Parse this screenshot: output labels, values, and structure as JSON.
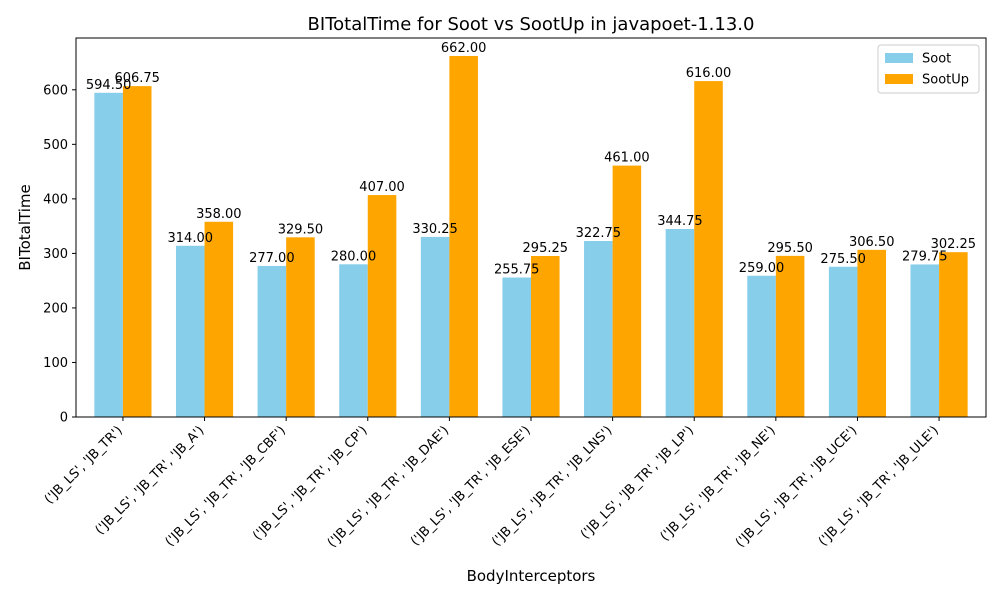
{
  "chart_data": {
    "type": "bar",
    "title": "BITotalTime for Soot vs SootUp in javapoet-1.13.0",
    "xlabel": "BodyInterceptors",
    "ylabel": "BITotalTime",
    "ylim": [
      0,
      695
    ],
    "yticks": [
      0,
      100,
      200,
      300,
      400,
      500,
      600
    ],
    "grid": false,
    "legend_position": "top-right",
    "categories": [
      "('JB_LS', 'JB_TR')",
      "('JB_LS', 'JB_TR', 'JB_A')",
      "('JB_LS', 'JB_TR', 'JB_CBF')",
      "('JB_LS', 'JB_TR', 'JB_CP')",
      "('JB_LS', 'JB_TR', 'JB_DAE')",
      "('JB_LS', 'JB_TR', 'JB_ESE')",
      "('JB_LS', 'JB_TR', 'JB_LNS')",
      "('JB_LS', 'JB_TR', 'JB_LP')",
      "('JB_LS', 'JB_TR', 'JB_NE')",
      "('JB_LS', 'JB_TR', 'JB_UCE')",
      "('JB_LS', 'JB_TR', 'JB_ULE')"
    ],
    "series": [
      {
        "name": "Soot",
        "color": "#87ceeb",
        "values": [
          594.5,
          314.0,
          277.0,
          280.0,
          330.25,
          255.75,
          322.75,
          344.75,
          259.0,
          275.5,
          279.75
        ],
        "labels": [
          "594.50",
          "314.00",
          "277.00",
          "280.00",
          "330.25",
          "255.75",
          "322.75",
          "344.75",
          "259.00",
          "275.50",
          "279.75"
        ]
      },
      {
        "name": "SootUp",
        "color": "#ffa500",
        "values": [
          606.75,
          358.0,
          329.5,
          407.0,
          662.0,
          295.25,
          461.0,
          616.0,
          295.5,
          306.5,
          302.25
        ],
        "labels": [
          "606.75",
          "358.00",
          "329.50",
          "407.00",
          "662.00",
          "295.25",
          "461.00",
          "616.00",
          "295.50",
          "306.50",
          "302.25"
        ]
      }
    ]
  }
}
